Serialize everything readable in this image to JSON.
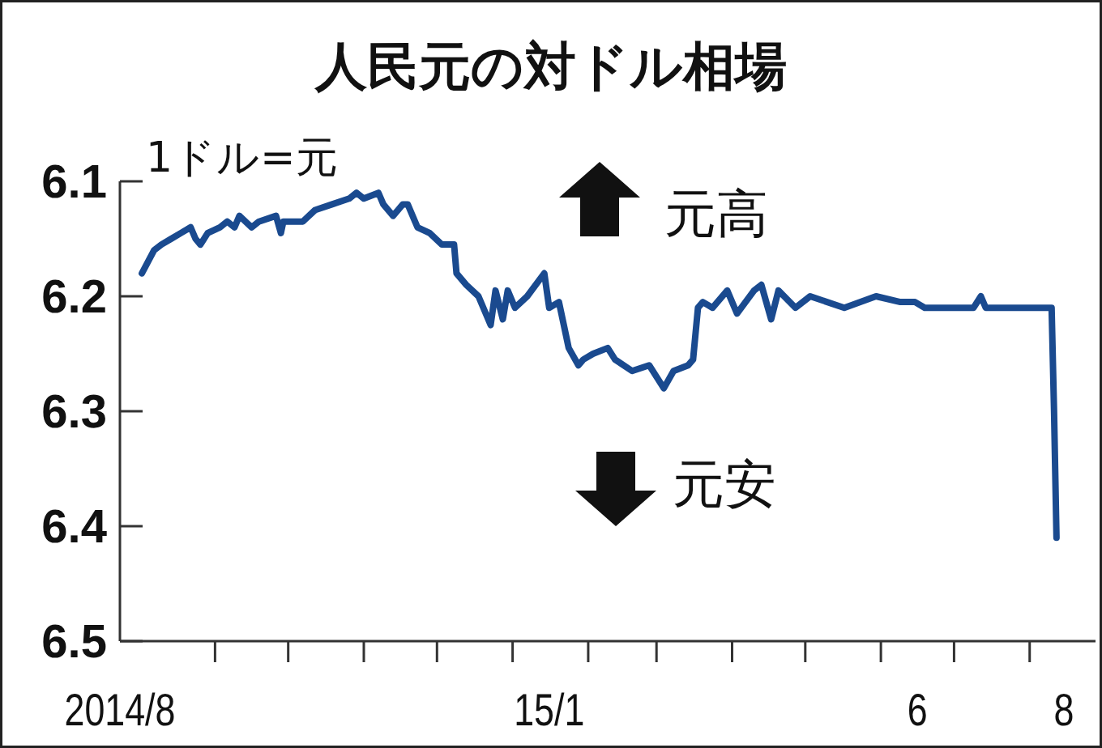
{
  "chart_data": {
    "type": "line",
    "title": "人民元の対ドル相場",
    "ylabel": "1ドル=元",
    "annotations": [
      "元高",
      "元安"
    ],
    "x": [
      "2014-08-02",
      "2014-08-07",
      "2014-08-10",
      "2014-08-14",
      "2014-08-18",
      "2014-08-22",
      "2014-08-24",
      "2014-08-26",
      "2014-08-29",
      "2014-09-03",
      "2014-09-06",
      "2014-09-09",
      "2014-09-11",
      "2014-09-16",
      "2014-09-19",
      "2014-09-26",
      "2014-09-28",
      "2014-09-29",
      "2014-10-02",
      "2014-10-07",
      "2014-10-12",
      "2014-10-19",
      "2014-10-26",
      "2014-10-29",
      "2014-11-01",
      "2014-11-07",
      "2014-11-09",
      "2014-11-13",
      "2014-11-17",
      "2014-11-19",
      "2014-11-23",
      "2014-11-28",
      "2014-12-03",
      "2014-12-08",
      "2014-12-09",
      "2014-12-13",
      "2014-12-18",
      "2014-12-23",
      "2014-12-25",
      "2014-12-28",
      "2014-12-30",
      "2015-01-02",
      "2015-01-07",
      "2015-01-14",
      "2015-01-16",
      "2015-01-20",
      "2015-01-24",
      "2015-01-28",
      "2015-01-30",
      "2015-02-03",
      "2015-02-09",
      "2015-02-12",
      "2015-02-19",
      "2015-02-26",
      "2015-03-01",
      "2015-03-04",
      "2015-03-08",
      "2015-03-14",
      "2015-03-16",
      "2015-03-18",
      "2015-03-20",
      "2015-03-24",
      "2015-03-30",
      "2015-04-03",
      "2015-04-10",
      "2015-04-13",
      "2015-04-17",
      "2015-04-20",
      "2015-04-27",
      "2015-05-03",
      "2015-05-17",
      "2015-05-30",
      "2015-06-09",
      "2015-06-15",
      "2015-06-19",
      "2015-06-25",
      "2015-07-02",
      "2015-07-09",
      "2015-07-12",
      "2015-07-14",
      "2015-07-22",
      "2015-08-04",
      "2015-08-10",
      "2015-08-11",
      "2015-08-12"
    ],
    "series": [
      {
        "color": "#1a4a8f",
        "values": [
          6.18,
          6.16,
          6.155,
          6.15,
          6.145,
          6.14,
          6.15,
          6.155,
          6.145,
          6.14,
          6.135,
          6.14,
          6.13,
          6.14,
          6.135,
          6.13,
          6.145,
          6.135,
          6.135,
          6.135,
          6.125,
          6.12,
          6.115,
          6.11,
          6.115,
          6.11,
          6.12,
          6.13,
          6.12,
          6.12,
          6.14,
          6.145,
          6.155,
          6.155,
          6.18,
          6.19,
          6.2,
          6.225,
          6.195,
          6.22,
          6.195,
          6.21,
          6.2,
          6.18,
          6.21,
          6.205,
          6.245,
          6.26,
          6.255,
          6.25,
          6.245,
          6.255,
          6.265,
          6.26,
          6.27,
          6.28,
          6.265,
          6.26,
          6.255,
          6.21,
          6.205,
          6.21,
          6.195,
          6.215,
          6.195,
          6.19,
          6.22,
          6.195,
          6.21,
          6.2,
          6.21,
          6.2,
          6.205,
          6.205,
          6.21,
          6.21,
          6.21,
          6.21,
          6.2,
          6.21,
          6.21,
          6.21,
          6.21,
          6.3,
          6.41
        ]
      }
    ],
    "xlim": [
      "2014-07-24",
      "2015-08-28"
    ],
    "ylim": [
      6.5,
      6.1
    ],
    "yticks": [
      6.1,
      6.2,
      6.3,
      6.4,
      6.5
    ],
    "xticks": [
      {
        "value": "2014-07-24",
        "label": "2014/8"
      },
      {
        "value": "2014-09-01",
        "label": null
      },
      {
        "value": "2014-10-01",
        "label": null
      },
      {
        "value": "2014-11-01",
        "label": null
      },
      {
        "value": "2014-12-01",
        "label": null
      },
      {
        "value": "2015-01-01",
        "label": null
      },
      {
        "value": "2015-01-16",
        "label": "15/1"
      },
      {
        "value": "2015-02-01",
        "label": null
      },
      {
        "value": "2015-03-01",
        "label": null
      },
      {
        "value": "2015-04-01",
        "label": null
      },
      {
        "value": "2015-05-01",
        "label": null
      },
      {
        "value": "2015-06-01",
        "label": null
      },
      {
        "value": "2015-06-16",
        "label": "6"
      },
      {
        "value": "2015-07-01",
        "label": null
      },
      {
        "value": "2015-08-01",
        "label": null
      },
      {
        "value": "2015-08-15",
        "label": "8"
      }
    ]
  }
}
